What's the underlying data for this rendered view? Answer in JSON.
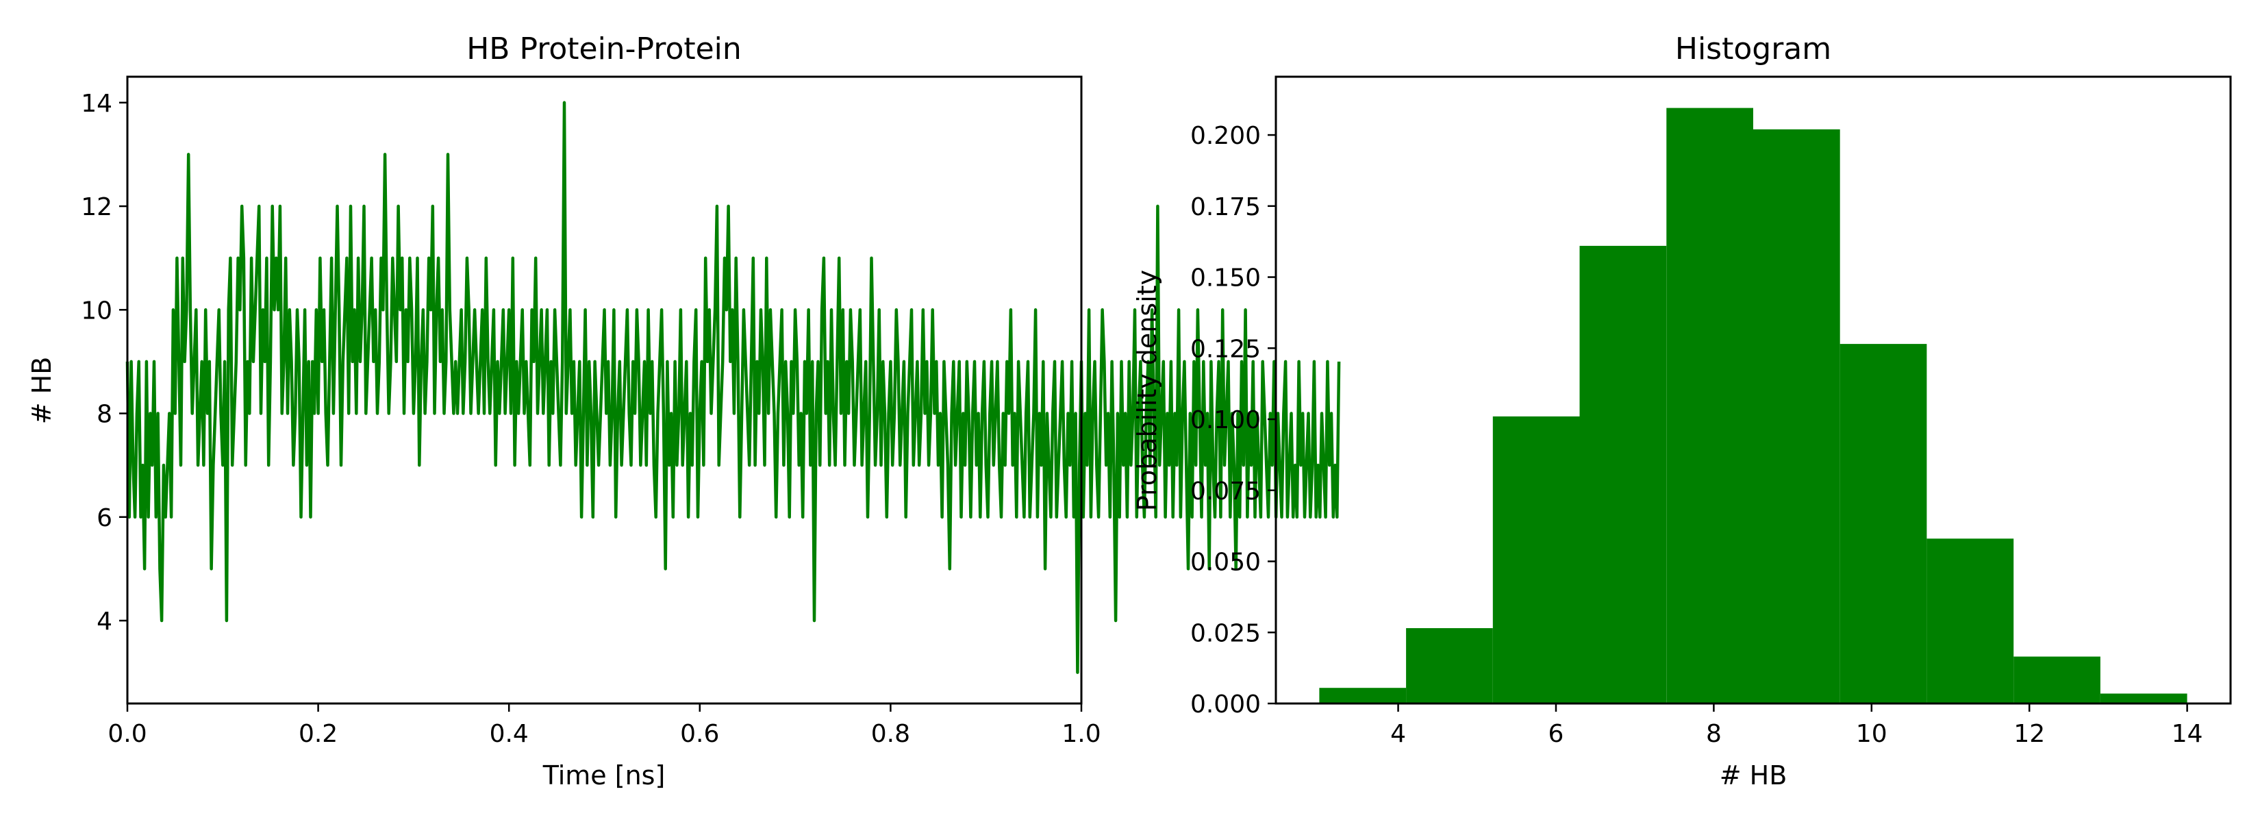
{
  "chart_data": [
    {
      "type": "line",
      "title": "HB Protein-Protein",
      "xlabel": "Time [ns]",
      "ylabel": "# HB",
      "xlim": [
        0.0,
        1.0
      ],
      "ylim": [
        2.4,
        14.5
      ],
      "xticks": [
        "0.0",
        "0.2",
        "0.4",
        "0.6",
        "0.8",
        "1.0"
      ],
      "xtick_values": [
        0.0,
        0.2,
        0.4,
        0.6,
        0.8,
        1.0
      ],
      "yticks": [
        "4",
        "6",
        "8",
        "10",
        "12",
        "14"
      ],
      "ytick_values": [
        4,
        6,
        8,
        10,
        12,
        14
      ],
      "grid": false,
      "color": "#008000",
      "x_start": 0.0,
      "x_step": 0.002,
      "y": [
        9,
        6,
        9,
        7,
        6,
        8,
        9,
        6,
        7,
        5,
        9,
        6,
        8,
        7,
        9,
        6,
        8,
        5,
        4,
        7,
        6,
        7,
        8,
        6,
        10,
        8,
        11,
        9,
        7,
        11,
        9,
        10,
        13,
        10,
        8,
        9,
        10,
        7,
        8,
        9,
        7,
        10,
        8,
        9,
        5,
        7,
        8,
        9,
        10,
        8,
        7,
        9,
        4,
        10,
        11,
        7,
        8,
        9,
        11,
        10,
        12,
        11,
        7,
        9,
        8,
        11,
        9,
        10,
        11,
        12,
        8,
        10,
        9,
        11,
        7,
        9,
        12,
        10,
        11,
        10,
        12,
        8,
        9,
        11,
        8,
        10,
        9,
        7,
        8,
        10,
        9,
        6,
        8,
        10,
        7,
        9,
        6,
        9,
        8,
        10,
        8,
        11,
        9,
        10,
        8,
        7,
        9,
        11,
        8,
        10,
        12,
        10,
        7,
        9,
        10,
        11,
        8,
        12,
        9,
        10,
        8,
        11,
        9,
        10,
        12,
        8,
        9,
        10,
        11,
        9,
        10,
        8,
        9,
        11,
        10,
        13,
        10,
        8,
        9,
        11,
        10,
        9,
        12,
        10,
        11,
        8,
        10,
        9,
        11,
        10,
        8,
        9,
        11,
        7,
        9,
        10,
        8,
        9,
        11,
        10,
        12,
        8,
        10,
        11,
        9,
        10,
        8,
        9,
        13,
        10,
        9,
        8,
        9,
        8,
        9,
        10,
        8,
        9,
        11,
        10,
        8,
        9,
        10,
        9,
        8,
        9,
        10,
        8,
        11,
        9,
        8,
        9,
        10,
        7,
        9,
        8,
        9,
        10,
        8,
        9,
        10,
        8,
        11,
        7,
        9,
        8,
        9,
        10,
        8,
        9,
        8,
        7,
        10,
        9,
        11,
        8,
        9,
        10,
        8,
        9,
        10,
        7,
        9,
        8,
        10,
        9,
        8,
        7,
        9,
        14,
        8,
        9,
        10,
        8,
        9,
        7,
        8,
        9,
        6,
        8,
        10,
        7,
        9,
        8,
        6,
        9,
        8,
        7,
        8,
        9,
        10,
        8,
        9,
        7,
        8,
        10,
        6,
        8,
        9,
        7,
        8,
        9,
        10,
        8,
        7,
        9,
        8,
        10,
        9,
        7,
        8,
        9,
        7,
        10,
        8,
        9,
        7,
        6,
        8,
        9,
        10,
        8,
        5,
        9,
        7,
        8,
        6,
        9,
        7,
        8,
        10,
        7,
        8,
        9,
        6,
        8,
        7,
        9,
        10,
        6,
        8,
        9,
        7,
        11,
        9,
        10,
        8,
        9,
        10,
        12,
        7,
        8,
        9,
        11,
        10,
        12,
        9,
        10,
        8,
        11,
        9,
        6,
        8,
        10,
        9,
        8,
        7,
        9,
        11,
        7,
        9,
        8,
        10,
        9,
        7,
        11,
        8,
        10,
        9,
        8,
        6,
        8,
        9,
        10,
        7,
        9,
        8,
        6,
        9,
        8,
        10,
        9,
        7,
        8,
        6,
        9,
        8,
        10,
        7,
        9,
        4,
        8,
        9,
        7,
        10,
        11,
        8,
        9,
        7,
        10,
        8,
        7,
        9,
        11,
        8,
        10,
        7,
        9,
        8,
        10,
        9,
        7,
        8,
        9,
        10,
        7,
        8,
        9,
        6,
        8,
        11,
        9,
        7,
        8,
        10,
        7,
        9,
        8,
        6,
        8,
        9,
        7,
        8,
        10,
        9,
        7,
        8,
        9,
        6,
        8,
        9,
        10,
        7,
        8,
        9,
        7,
        8,
        10,
        8,
        9,
        7,
        8,
        10,
        8,
        9,
        7,
        8,
        6,
        9,
        8,
        7,
        5,
        8,
        9,
        7,
        8,
        9,
        6,
        8,
        7,
        9,
        8,
        6,
        8,
        9,
        7,
        8,
        6,
        8,
        9,
        7,
        6,
        8,
        9,
        7,
        8,
        9,
        7,
        6,
        8,
        7,
        9,
        8,
        10,
        7,
        8,
        6,
        9,
        8,
        7,
        6,
        8,
        9,
        6,
        7,
        8,
        10,
        6,
        8,
        7,
        9,
        5,
        8,
        7,
        6,
        8,
        9,
        6,
        7,
        8,
        9,
        7,
        6,
        8,
        7,
        9,
        6,
        8,
        3,
        7,
        9,
        6,
        8,
        7,
        10,
        6,
        8,
        9,
        7,
        6,
        8,
        10,
        9,
        7,
        8,
        6,
        9,
        7,
        4,
        8,
        6,
        9,
        7,
        8,
        6,
        9,
        7,
        8,
        10,
        6,
        8,
        9,
        7,
        6,
        8,
        9,
        7,
        10,
        8,
        6,
        12,
        7,
        8,
        9,
        6,
        8,
        7,
        9,
        6,
        8,
        7,
        10,
        6,
        8,
        9,
        7,
        5,
        8,
        6,
        9,
        7,
        10,
        8,
        6,
        9,
        7,
        8,
        5,
        9,
        7,
        6,
        8,
        9,
        6,
        10,
        7,
        8,
        9,
        6,
        8,
        7,
        5,
        8,
        6,
        9,
        7,
        10,
        6,
        8,
        7,
        9,
        6,
        8,
        7,
        6,
        9,
        8,
        7,
        6,
        8,
        7,
        9,
        6,
        8,
        7,
        6,
        8,
        9,
        6,
        7,
        8,
        6,
        7,
        6,
        9,
        7,
        8,
        6,
        7,
        8,
        6,
        7,
        9,
        6,
        7,
        6,
        8,
        7,
        6,
        9,
        7,
        8,
        6,
        7,
        6,
        9
      ]
    },
    {
      "type": "bar",
      "subtype": "histogram",
      "title": "Histogram",
      "xlabel": "# HB",
      "ylabel": "Probability density",
      "xlim": [
        2.45,
        14.55
      ],
      "ylim": [
        0.0,
        0.2205
      ],
      "xticks": [
        "4",
        "6",
        "8",
        "10",
        "12",
        "14"
      ],
      "xtick_values": [
        4,
        6,
        8,
        10,
        12,
        14
      ],
      "yticks": [
        "0.000",
        "0.025",
        "0.050",
        "0.075",
        "0.100",
        "0.125",
        "0.150",
        "0.175",
        "0.200"
      ],
      "ytick_values": [
        0.0,
        0.025,
        0.05,
        0.075,
        0.1,
        0.125,
        0.15,
        0.175,
        0.2
      ],
      "grid": false,
      "color": "#008000",
      "bin_edges": [
        3.0,
        4.1,
        5.2,
        6.3,
        7.4,
        8.5,
        9.6,
        10.7,
        11.8,
        12.9,
        14.0
      ],
      "values": [
        0.0055,
        0.0265,
        0.101,
        0.161,
        0.2095,
        0.202,
        0.1265,
        0.058,
        0.0165,
        0.0035
      ]
    }
  ]
}
